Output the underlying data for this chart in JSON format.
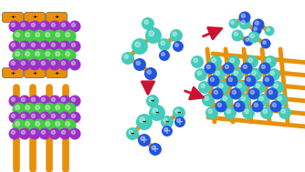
{
  "bg_color": "#ffffff",
  "purple": "#9b30c8",
  "green": "#44cc44",
  "orange": "#e8900a",
  "teal": "#44ccbb",
  "blue": "#2255dd",
  "dark_red": "#cc1133",
  "figsize": [
    3.34,
    1.89
  ],
  "dpi": 100
}
